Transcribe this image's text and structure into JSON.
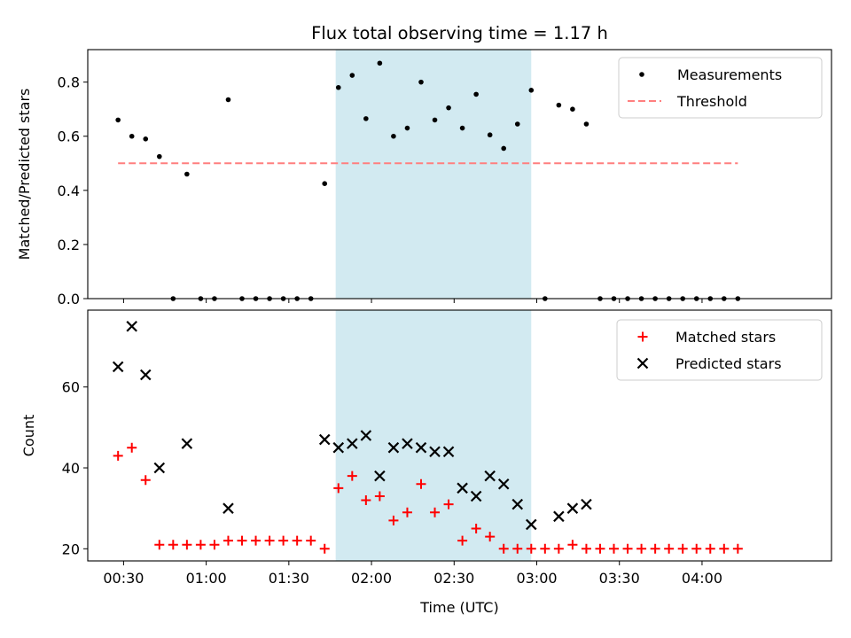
{
  "chart_data": [
    {
      "type": "scatter",
      "title": "Flux total observing time = 1.17 h",
      "ylabel": "Matched/Predicted stars",
      "xlabel": "",
      "ylim": [
        0,
        0.92
      ],
      "yticks": [
        0.0,
        0.2,
        0.4,
        0.6,
        0.8
      ],
      "ytick_labels": [
        "0.0",
        "0.2",
        "0.4",
        "0.6",
        "0.8"
      ],
      "x_unit": "minutes_utc",
      "xlim": [
        17,
        287
      ],
      "grid": false,
      "legend_position": "upper-right",
      "shaded_interval": {
        "x": [
          107,
          178
        ],
        "color": "#add8e6"
      },
      "series": [
        {
          "name": "Measurements",
          "marker": "dot",
          "color": "#000000",
          "x": [
            28,
            33,
            38,
            43,
            48,
            53,
            58,
            63,
            68,
            73,
            78,
            83,
            88,
            93,
            98,
            103,
            108,
            113,
            118,
            123,
            128,
            133,
            138,
            143,
            148,
            153,
            158,
            163,
            168,
            173,
            178,
            183,
            188,
            193,
            198,
            203,
            208,
            213,
            218,
            223,
            228,
            233,
            238,
            243,
            248,
            253
          ],
          "y": [
            0.66,
            0.6,
            0.59,
            0.525,
            0.0,
            0.46,
            0.0,
            0.0,
            0.735,
            0.0,
            0.0,
            0.0,
            0.0,
            0.0,
            0.0,
            0.425,
            0.78,
            0.825,
            0.665,
            0.87,
            0.6,
            0.63,
            0.8,
            0.66,
            0.705,
            0.63,
            0.755,
            0.605,
            0.555,
            0.645,
            0.77,
            0.0,
            0.715,
            0.7,
            0.645,
            0.0,
            0.0,
            0.0,
            0.0,
            0.0,
            0.0,
            0.0,
            0.0,
            0.0,
            0.0,
            0.0
          ]
        },
        {
          "name": "Threshold",
          "line": "dashed",
          "color": "#ff7f7f",
          "x": [
            28,
            253
          ],
          "y": [
            0.5,
            0.5
          ]
        }
      ]
    },
    {
      "type": "scatter",
      "title": "",
      "ylabel": "Count",
      "xlabel": "Time (UTC)",
      "ylim": [
        17,
        79
      ],
      "yticks": [
        20,
        40,
        60
      ],
      "ytick_labels": [
        "20",
        "40",
        "60"
      ],
      "x_unit": "minutes_utc",
      "xlim": [
        17,
        287
      ],
      "xticks": [
        30,
        60,
        90,
        120,
        150,
        180,
        210,
        240
      ],
      "xtick_labels": [
        "00:30",
        "01:00",
        "01:30",
        "02:00",
        "02:30",
        "03:00",
        "03:30",
        "04:00"
      ],
      "grid": false,
      "legend_position": "upper-right",
      "shaded_interval": {
        "x": [
          107,
          178
        ],
        "color": "#add8e6"
      },
      "series": [
        {
          "name": "Matched stars",
          "marker": "plus",
          "color": "#ff0000",
          "x": [
            28,
            33,
            38,
            43,
            48,
            53,
            58,
            63,
            68,
            73,
            78,
            83,
            88,
            93,
            98,
            103,
            108,
            113,
            118,
            123,
            128,
            133,
            138,
            143,
            148,
            153,
            158,
            163,
            168,
            173,
            178,
            183,
            188,
            193,
            198,
            203,
            208,
            213,
            218,
            223,
            228,
            233,
            238,
            243,
            248,
            253
          ],
          "y": [
            43,
            45,
            37,
            21,
            21,
            21,
            21,
            21,
            22,
            22,
            22,
            22,
            22,
            22,
            22,
            20,
            35,
            38,
            32,
            33,
            27,
            29,
            36,
            29,
            31,
            22,
            25,
            23,
            20,
            20,
            20,
            20,
            20,
            21,
            20,
            20,
            20,
            20,
            20,
            20,
            20,
            20,
            20,
            20,
            20,
            20
          ]
        },
        {
          "name": "Predicted stars",
          "marker": "x",
          "color": "#000000",
          "x": [
            28,
            33,
            38,
            43,
            53,
            68,
            103,
            108,
            113,
            118,
            123,
            128,
            133,
            138,
            143,
            148,
            153,
            158,
            163,
            168,
            173,
            178,
            188,
            193,
            198
          ],
          "y": [
            65,
            75,
            63,
            40,
            46,
            30,
            47,
            45,
            46,
            48,
            38,
            45,
            46,
            45,
            44,
            44,
            35,
            33,
            38,
            36,
            31,
            26,
            28,
            30,
            31
          ]
        }
      ]
    }
  ]
}
